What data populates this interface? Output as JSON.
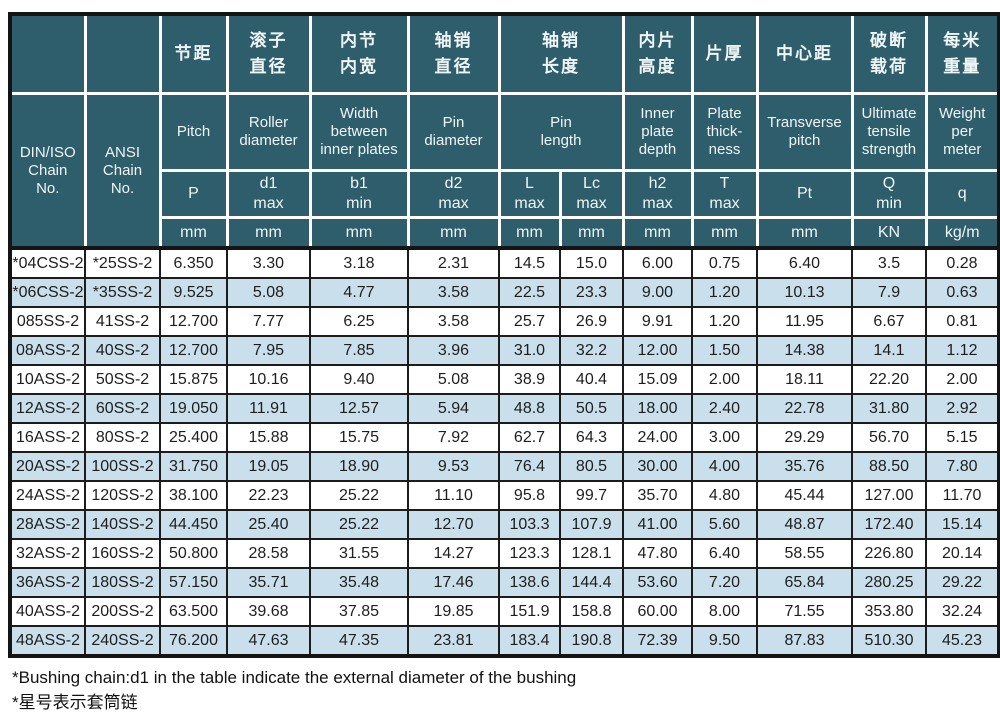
{
  "table": {
    "header": {
      "din_iso": "DIN/ISO\nChain\nNo.",
      "ansi": "ANSI\nChain\nNo.",
      "cn": [
        "节距",
        "滚子\n直径",
        "内节\n内宽",
        "轴销\n直径",
        "轴销\n长度",
        "内片\n高度",
        "片厚",
        "中心距",
        "破断\n载荷",
        "每米\n重量"
      ],
      "en": [
        "Pitch",
        "Roller\ndiameter",
        "Width\nbetween\ninner plates",
        "Pin\ndiameter",
        "Pin\nlength",
        "Inner\nplate\ndepth",
        "Plate\nthick-\nness",
        "Transverse\npitch",
        "Ultimate\ntensile\nstrength",
        "Weight\nper\nmeter"
      ],
      "symbols": [
        "P",
        "d1\nmax",
        "b1\nmin",
        "d2\nmax",
        "L\nmax",
        "Lc\nmax",
        "h2\nmax",
        "T\nmax",
        "Pt",
        "Q\nmin",
        "q"
      ],
      "units": [
        "mm",
        "mm",
        "mm",
        "mm",
        "mm",
        "mm",
        "mm",
        "mm",
        "mm",
        "KN",
        "kg/m"
      ]
    },
    "rows": [
      [
        "*04CSS-2",
        "*25SS-2",
        "6.350",
        "3.30",
        "3.18",
        "2.31",
        "14.5",
        "15.0",
        "6.00",
        "0.75",
        "6.40",
        "3.5",
        "0.28"
      ],
      [
        "*06CSS-2",
        "*35SS-2",
        "9.525",
        "5.08",
        "4.77",
        "3.58",
        "22.5",
        "23.3",
        "9.00",
        "1.20",
        "10.13",
        "7.9",
        "0.63"
      ],
      [
        "085SS-2",
        "41SS-2",
        "12.700",
        "7.77",
        "6.25",
        "3.58",
        "25.7",
        "26.9",
        "9.91",
        "1.20",
        "11.95",
        "6.67",
        "0.81"
      ],
      [
        "08ASS-2",
        "40SS-2",
        "12.700",
        "7.95",
        "7.85",
        "3.96",
        "31.0",
        "32.2",
        "12.00",
        "1.50",
        "14.38",
        "14.1",
        "1.12"
      ],
      [
        "10ASS-2",
        "50SS-2",
        "15.875",
        "10.16",
        "9.40",
        "5.08",
        "38.9",
        "40.4",
        "15.09",
        "2.00",
        "18.11",
        "22.20",
        "2.00"
      ],
      [
        "12ASS-2",
        "60SS-2",
        "19.050",
        "11.91",
        "12.57",
        "5.94",
        "48.8",
        "50.5",
        "18.00",
        "2.40",
        "22.78",
        "31.80",
        "2.92"
      ],
      [
        "16ASS-2",
        "80SS-2",
        "25.400",
        "15.88",
        "15.75",
        "7.92",
        "62.7",
        "64.3",
        "24.00",
        "3.00",
        "29.29",
        "56.70",
        "5.15"
      ],
      [
        "20ASS-2",
        "100SS-2",
        "31.750",
        "19.05",
        "18.90",
        "9.53",
        "76.4",
        "80.5",
        "30.00",
        "4.00",
        "35.76",
        "88.50",
        "7.80"
      ],
      [
        "24ASS-2",
        "120SS-2",
        "38.100",
        "22.23",
        "25.22",
        "11.10",
        "95.8",
        "99.7",
        "35.70",
        "4.80",
        "45.44",
        "127.00",
        "11.70"
      ],
      [
        "28ASS-2",
        "140SS-2",
        "44.450",
        "25.40",
        "25.22",
        "12.70",
        "103.3",
        "107.9",
        "41.00",
        "5.60",
        "48.87",
        "172.40",
        "15.14"
      ],
      [
        "32ASS-2",
        "160SS-2",
        "50.800",
        "28.58",
        "31.55",
        "14.27",
        "123.3",
        "128.1",
        "47.80",
        "6.40",
        "58.55",
        "226.80",
        "20.14"
      ],
      [
        "36ASS-2",
        "180SS-2",
        "57.150",
        "35.71",
        "35.48",
        "17.46",
        "138.6",
        "144.4",
        "53.60",
        "7.20",
        "65.84",
        "280.25",
        "29.22"
      ],
      [
        "40ASS-2",
        "200SS-2",
        "63.500",
        "39.68",
        "37.85",
        "19.85",
        "151.9",
        "158.8",
        "60.00",
        "8.00",
        "71.55",
        "353.80",
        "32.24"
      ],
      [
        "48ASS-2",
        "240SS-2",
        "76.200",
        "47.63",
        "47.35",
        "23.81",
        "183.4",
        "190.8",
        "72.39",
        "9.50",
        "87.83",
        "510.30",
        "45.23"
      ]
    ]
  },
  "notes": [
    "*Bushing chain:d1 in the table indicate the external diameter of the bushing",
    "*星号表示套筒链"
  ],
  "colors": {
    "header_bg": "#2e5d6b",
    "alt_row_bg": "#c9dfeb",
    "grid_dark": "#1c1c1c",
    "header_grid": "#ffffff"
  }
}
